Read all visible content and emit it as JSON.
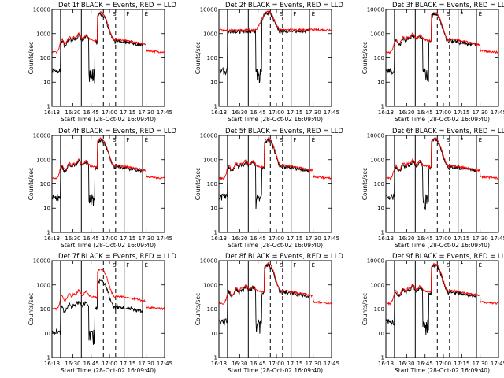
{
  "colors": {
    "events": "#000000",
    "lld": "#ff0000",
    "axes": "#000000",
    "background": "#ffffff"
  },
  "chart_data": {
    "type": "line",
    "ylabel": "Counts/sec",
    "xlabel": "Start Time (28-Oct-02 16:09:40)",
    "yscale": "log",
    "ylim": [
      1,
      10000
    ],
    "ytick_labels": [
      "1",
      "10",
      "100",
      "1000",
      "10000"
    ],
    "xlim": [
      "16:13",
      "17:45"
    ],
    "xtick_labels": [
      "16:13",
      "16:30",
      "16:45",
      "17:00",
      "17:15",
      "17:30",
      "17:45"
    ],
    "grid": false,
    "markers": {
      "solid_lines": [
        "16:20",
        "16:37",
        "17:12",
        "17:27"
      ],
      "dashed_lines": [
        "16:55",
        "17:05"
      ],
      "annotations": [
        "S",
        "F",
        "E"
      ]
    },
    "panels": [
      {
        "title": "Det 1f BLACK = Events, RED = LLD"
      },
      {
        "title": "Det 2f BLACK = Events, RED = LLD"
      },
      {
        "title": "Det 3f BLACK = Events, RED = LLD"
      },
      {
        "title": "Det 4f BLACK = Events, RED = LLD"
      },
      {
        "title": "Det 5f BLACK = Events, RED = LLD"
      },
      {
        "title": "Det 6f BLACK = Events, RED = LLD"
      },
      {
        "title": "Det 7f BLACK = Events, RED = LLD"
      },
      {
        "title": "Det 8f BLACK = Events, RED = LLD"
      },
      {
        "title": "Det 9f BLACK = Events, RED = LLD"
      }
    ]
  }
}
